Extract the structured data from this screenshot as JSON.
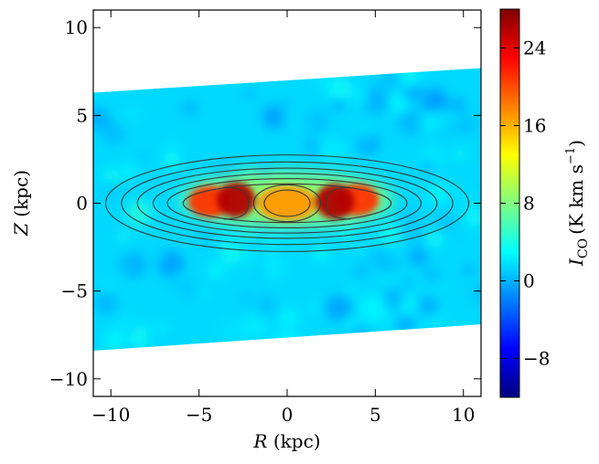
{
  "chart_data": {
    "type": "heatmap",
    "title": "",
    "xlabel_var": "R",
    "xlabel_unit": "(kpc)",
    "ylabel_var": "Z",
    "ylabel_unit": "(kpc)",
    "xlim": [
      -11,
      11
    ],
    "ylim": [
      -11,
      11
    ],
    "x_ticks": [
      -10,
      -5,
      0,
      5,
      10
    ],
    "x_tick_labels": [
      "−10",
      "−5",
      "0",
      "5",
      "10"
    ],
    "y_ticks": [
      -10,
      -5,
      0,
      5,
      10
    ],
    "y_tick_labels": [
      "−10",
      "−5",
      "0",
      "5",
      "10"
    ],
    "coverage_band": {
      "top_edge": [
        [
          -11,
          6.3
        ],
        [
          11,
          7.7
        ]
      ],
      "bottom_edge": [
        [
          -11,
          -8.4
        ],
        [
          11,
          -6.9
        ]
      ]
    },
    "emission_features": [
      {
        "name": "central-ring-core",
        "x": 0,
        "y": 0,
        "rx": 1.7,
        "ry": 1.0,
        "intensity": 17
      },
      {
        "name": "left-inner-peak",
        "x": -2.9,
        "y": 0.2,
        "rx": 1.1,
        "ry": 1.0,
        "intensity": 26
      },
      {
        "name": "right-inner-peak",
        "x": 2.7,
        "y": 0.1,
        "rx": 1.1,
        "ry": 1.0,
        "intensity": 26
      },
      {
        "name": "left-outer-lobe",
        "x": -4.4,
        "y": 0.1,
        "rx": 1.2,
        "ry": 0.9,
        "intensity": 21
      },
      {
        "name": "right-outer-lobe",
        "x": 4.0,
        "y": 0.2,
        "rx": 1.2,
        "ry": 0.9,
        "intensity": 21
      },
      {
        "name": "disk-envelope",
        "x": 0,
        "y": 0.2,
        "rx": 6.0,
        "ry": 1.5,
        "intensity": 9
      }
    ],
    "contours": {
      "outer_rings": [
        {
          "rx": 10.3,
          "ry": 2.75
        },
        {
          "rx": 9.4,
          "ry": 2.35
        },
        {
          "rx": 8.5,
          "ry": 2.0
        },
        {
          "rx": 7.6,
          "ry": 1.7
        },
        {
          "rx": 6.8,
          "ry": 1.4
        },
        {
          "rx": 5.9,
          "ry": 1.1
        }
      ],
      "inner_rings": [
        {
          "rx": 1.9,
          "ry": 1.05
        },
        {
          "rx": 1.3,
          "ry": 0.75
        }
      ],
      "bracket_lobes": [
        {
          "side": "left",
          "inner_x": -2.2,
          "outer_x": -3.6,
          "ymax": 0.9
        },
        {
          "side": "right",
          "inner_x": 2.2,
          "outer_x": 3.6,
          "ymax": 0.9
        }
      ]
    },
    "colorbar": {
      "label_var": "I",
      "label_sub": "CO",
      "label_unit_open": "(K km s",
      "label_unit_exp": "−1",
      "label_unit_close": ")",
      "range": [
        -12,
        28
      ],
      "ticks": [
        -8,
        0,
        8,
        16,
        24
      ],
      "tick_labels": [
        "−8",
        "0",
        "8",
        "16",
        "24"
      ],
      "colormap": "jet",
      "colormap_stops": [
        "#00007f",
        "#0000ff",
        "#007fff",
        "#00ffff",
        "#7fff7f",
        "#ffff00",
        "#ff7f00",
        "#ff0000",
        "#7f0000"
      ]
    }
  }
}
